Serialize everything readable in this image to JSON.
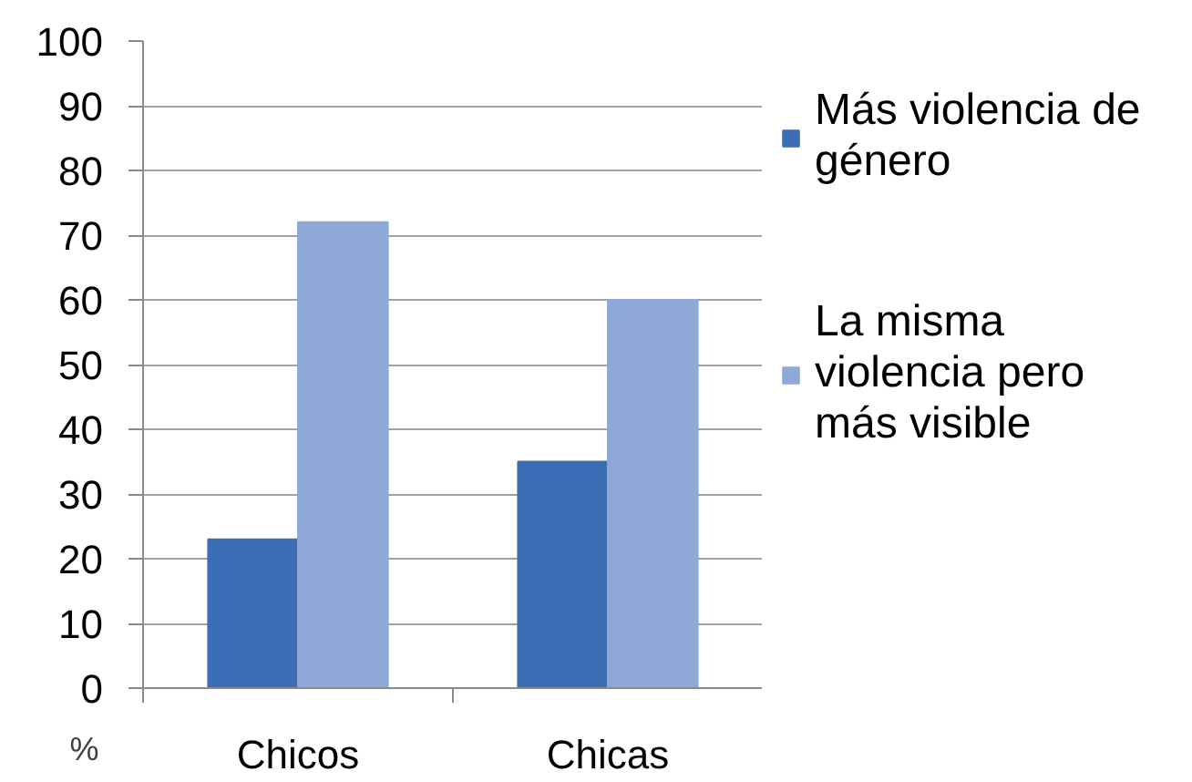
{
  "chart_data": {
    "type": "bar",
    "ylabel": "%",
    "categories": [
      "Chicos",
      "Chicas"
    ],
    "series": [
      {
        "name": "Más violencia de género",
        "color": "#3b6eb4",
        "values": [
          23,
          35
        ]
      },
      {
        "name": "La misma violencia pero más visible",
        "color": "#8ea9d8",
        "values": [
          72,
          60
        ]
      }
    ],
    "ylim": [
      0,
      100
    ],
    "yticks": [
      0,
      10,
      20,
      30,
      40,
      50,
      60,
      70,
      80,
      90,
      100
    ],
    "grid": "y",
    "legend": "right"
  }
}
